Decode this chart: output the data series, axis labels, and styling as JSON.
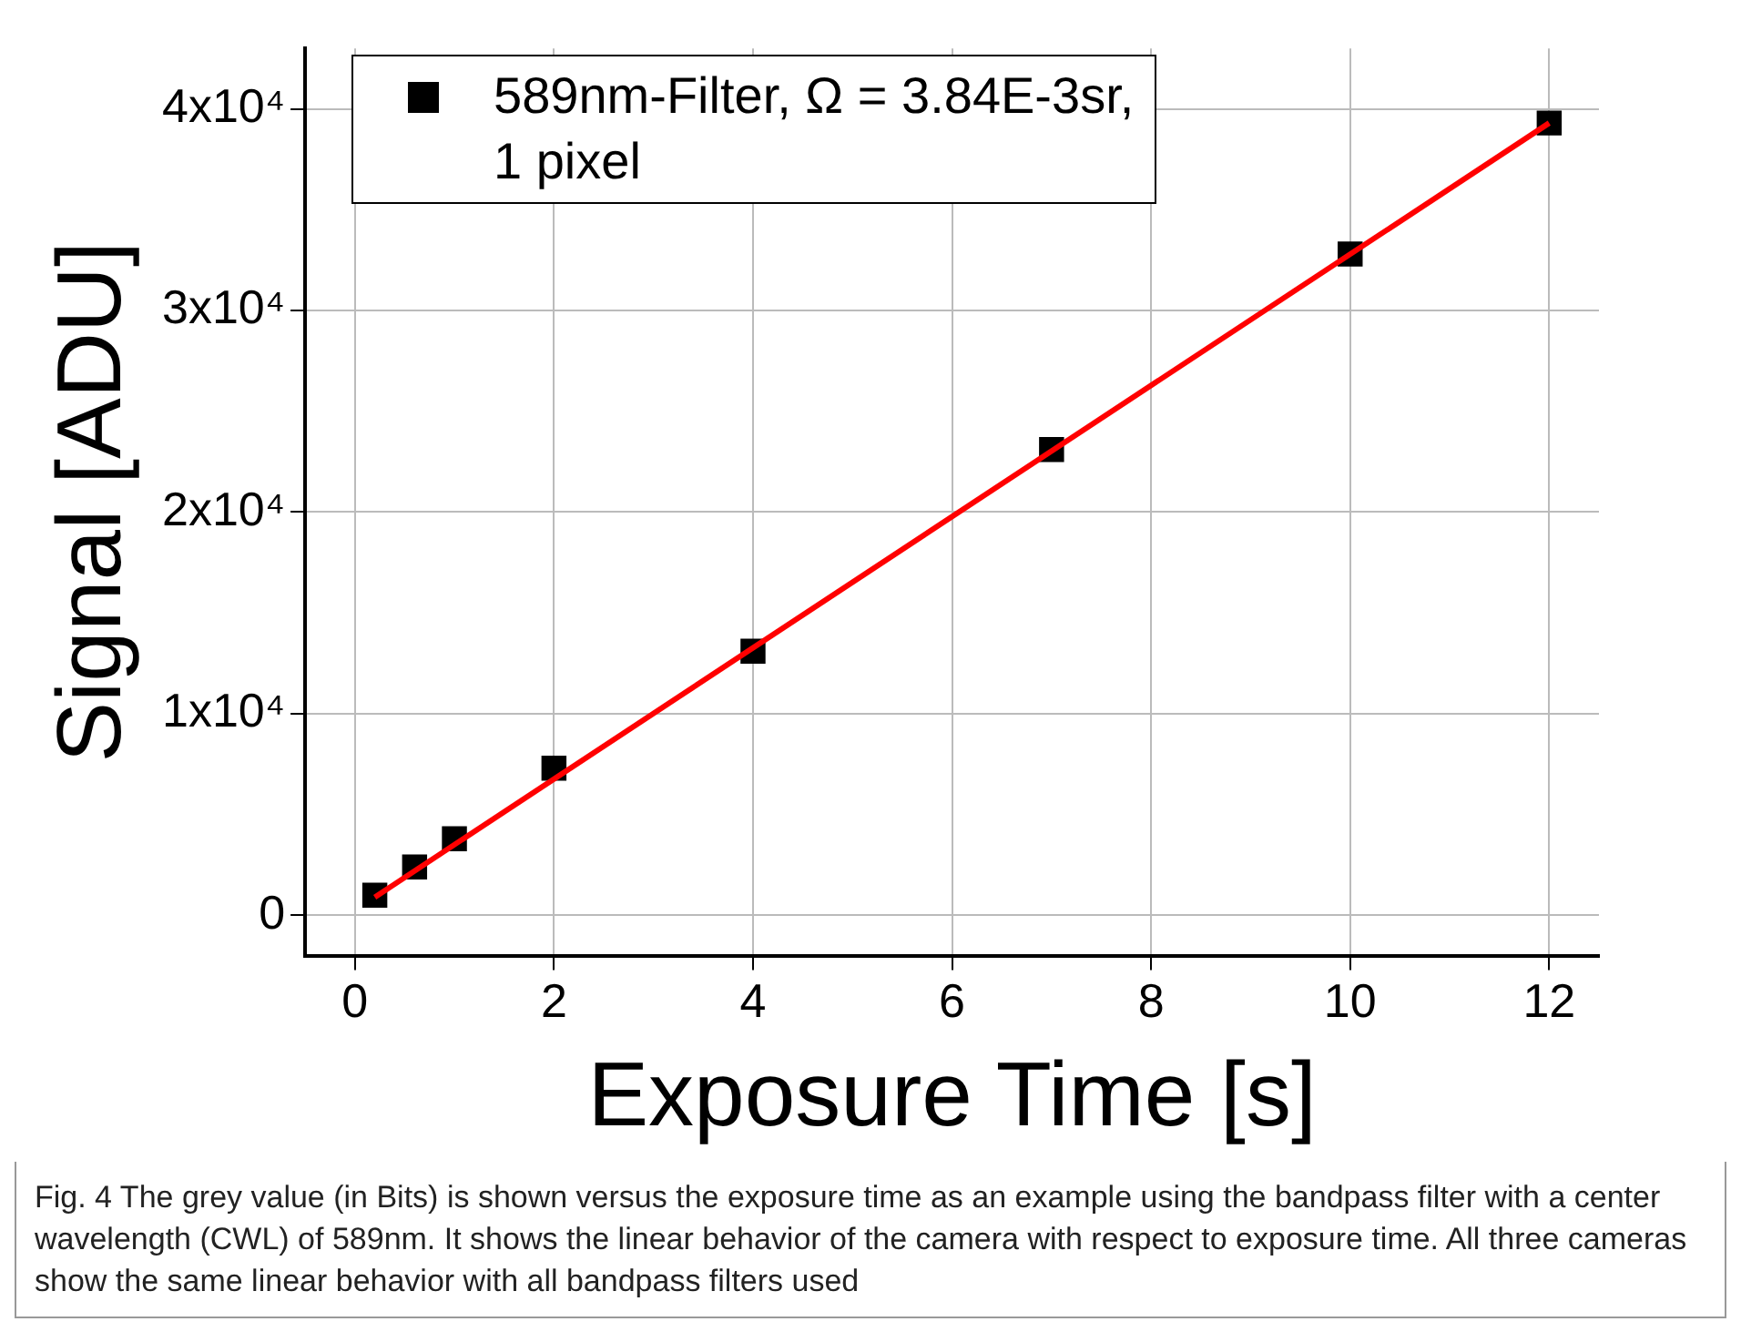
{
  "chart_data": {
    "type": "scatter",
    "xlabel": "Exposure Time [s]",
    "ylabel": "Signal [ADU]",
    "xlim": [
      -0.5,
      12.5
    ],
    "xticks": [
      0,
      2,
      4,
      6,
      8,
      10,
      12
    ],
    "ylim": [
      -2000,
      43000
    ],
    "yticks": [
      {
        "value": 0,
        "label": "0"
      },
      {
        "value": 10000,
        "label": "1x10⁴"
      },
      {
        "value": 20000,
        "label": "2x10⁴"
      },
      {
        "value": 30000,
        "label": "3x10⁴"
      },
      {
        "value": 40000,
        "label": "4x10⁴"
      }
    ],
    "grid": true,
    "legend": "top left",
    "series": [
      {
        "name": "589nm-Filter, Ω = 3.84E-3sr, 1 pixel",
        "type": "scatter",
        "color": "#000000",
        "marker": "square",
        "x": [
          0.2,
          0.6,
          1,
          2,
          4,
          7,
          10,
          12
        ],
        "values": [
          1000,
          2400,
          3800,
          7300,
          13100,
          23100,
          32800,
          39300
        ]
      },
      {
        "type": "line",
        "color": "#ff0000",
        "marker": "none",
        "line_style": "solid",
        "x": [
          0.2,
          12
        ],
        "values": [
          900,
          39300
        ]
      }
    ],
    "annotations": [
      "Fig. 4 The grey value (in Bits) is shown versus the exposure time as an example using the bandpass filter with a center wavelength (CWL) of 589nm. It shows the linear behavior of the camera with respect to exposure time. All three cameras show the same linear behavior with all bandpass filters used"
    ]
  }
}
